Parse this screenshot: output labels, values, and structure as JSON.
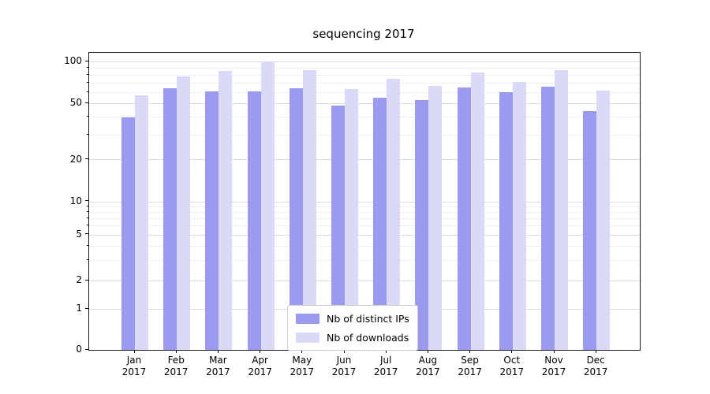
{
  "chart_data": {
    "type": "bar",
    "title": "sequencing 2017",
    "categories": [
      "Jan",
      "Feb",
      "Mar",
      "Apr",
      "May",
      "Jun",
      "Jul",
      "Aug",
      "Sep",
      "Oct",
      "Nov",
      "Dec"
    ],
    "category_year": "2017",
    "series": [
      {
        "name": "Nb of distinct IPs",
        "color": "#9a9aee",
        "values": [
          40,
          64,
          61,
          61,
          64,
          48,
          55,
          53,
          65,
          60,
          66,
          44
        ]
      },
      {
        "name": "Nb of downloads",
        "color": "#dadaf8",
        "values": [
          57,
          78,
          85,
          100,
          87,
          63,
          75,
          67,
          83,
          71,
          87,
          62
        ]
      }
    ],
    "yscale": "symlog",
    "yticks": [
      0,
      1,
      2,
      5,
      10,
      20,
      50,
      100
    ],
    "y_minor_ticks": [
      3,
      4,
      6,
      7,
      8,
      9,
      30,
      40,
      60,
      70,
      80,
      90
    ],
    "ylim": [
      0,
      115
    ],
    "grid": true,
    "legend_position": "lower center",
    "colors": {
      "grid_major": "#dcdcdc",
      "grid_minor": "#eeeeee",
      "spine": "#1a1a1a"
    }
  }
}
